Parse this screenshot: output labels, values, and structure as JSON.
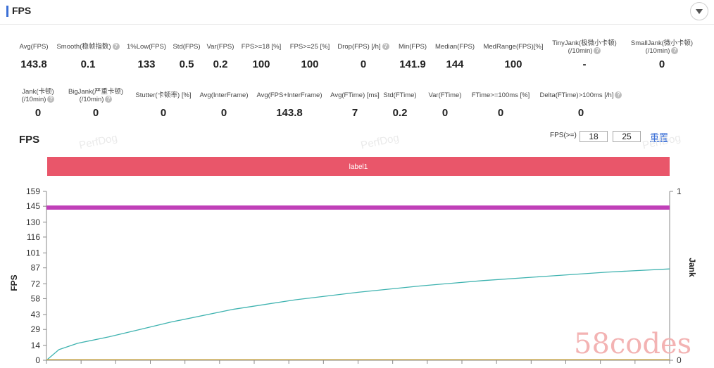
{
  "section": {
    "title": "FPS"
  },
  "stats_row1": [
    {
      "label": "Avg(FPS)",
      "value": "143.8",
      "help": false
    },
    {
      "label": "Smooth(稳帧指数)",
      "value": "0.1",
      "help": true
    },
    {
      "label": "1%Low(FPS)",
      "value": "133",
      "help": false
    },
    {
      "label": "Std(FPS)",
      "value": "0.5",
      "help": false
    },
    {
      "label": "Var(FPS)",
      "value": "0.2",
      "help": false
    },
    {
      "label": "FPS>=18 [%]",
      "value": "100",
      "help": false
    },
    {
      "label": "FPS>=25 [%]",
      "value": "100",
      "help": false
    },
    {
      "label": "Drop(FPS) [/h]",
      "value": "0",
      "help": true
    },
    {
      "label": "Min(FPS)",
      "value": "141.9",
      "help": false
    },
    {
      "label": "Median(FPS)",
      "value": "144",
      "help": false
    },
    {
      "label": "MedRange(FPS)[%]",
      "value": "100",
      "help": false
    },
    {
      "label": "TinyJank(极微小卡顿)",
      "label2": "(/10min)",
      "value": "-",
      "help": true
    },
    {
      "label": "SmallJank(微小卡顿)",
      "label2": "(/10min)",
      "value": "0",
      "help": true
    }
  ],
  "stats_row2": [
    {
      "label": "Jank(卡顿)",
      "label2": "(/10min)",
      "value": "0",
      "help": true
    },
    {
      "label": "BigJank(严重卡顿)",
      "label2": "(/10min)",
      "value": "0",
      "help": true
    },
    {
      "label": "Stutter(卡顿率) [%]",
      "value": "0",
      "help": false
    },
    {
      "label": "Avg(InterFrame)",
      "value": "0",
      "help": false
    },
    {
      "label": "Avg(FPS+InterFrame)",
      "value": "143.8",
      "help": false
    },
    {
      "label": "Avg(FTime) [ms]",
      "value": "7",
      "help": false
    },
    {
      "label": "Std(FTime)",
      "value": "0.2",
      "help": false
    },
    {
      "label": "Var(FTime)",
      "value": "0",
      "help": false
    },
    {
      "label": "FTime>=100ms [%]",
      "value": "0",
      "help": false
    },
    {
      "label": "Delta(FTime)>100ms [/h]",
      "value": "0",
      "help": true
    }
  ],
  "chart_header": {
    "title": "FPS",
    "threshold_label": "FPS(>=)",
    "threshold_low": "18",
    "threshold_high": "25",
    "reset_label": "重置"
  },
  "watermarks": [
    "PerfDog",
    "PerfDog",
    "PerfDog",
    "58codes"
  ],
  "chart_data": {
    "type": "line",
    "band_label": "label1",
    "ylabel": "FPS",
    "y2label": "Jank",
    "ylim": [
      0,
      159
    ],
    "y2lim": [
      0,
      1
    ],
    "yticks": [
      0,
      14,
      29,
      43,
      58,
      72,
      87,
      101,
      116,
      130,
      145,
      159
    ],
    "y2ticks": [
      0,
      1
    ],
    "grid": false,
    "series": [
      {
        "color": "#c040b8",
        "axis": "left",
        "x": [
          0,
          0.1,
          0.2,
          0.3,
          0.4,
          0.5,
          0.6,
          0.7,
          0.8,
          0.9,
          1.0
        ],
        "values": [
          143.8,
          143.8,
          143.8,
          143.8,
          143.8,
          143.8,
          143.8,
          143.8,
          143.8,
          143.8,
          143.8
        ]
      },
      {
        "color": "#3fb3b0",
        "axis": "left",
        "x": [
          0,
          0.02,
          0.05,
          0.1,
          0.15,
          0.2,
          0.3,
          0.4,
          0.5,
          0.6,
          0.7,
          0.8,
          0.9,
          1.0
        ],
        "values": [
          0,
          10,
          16,
          22,
          29,
          36,
          48,
          57,
          64,
          70,
          75,
          79,
          83,
          86
        ]
      },
      {
        "color": "#d8b24a",
        "axis": "right",
        "x": [
          0,
          1.0
        ],
        "values": [
          0,
          0
        ]
      }
    ]
  }
}
